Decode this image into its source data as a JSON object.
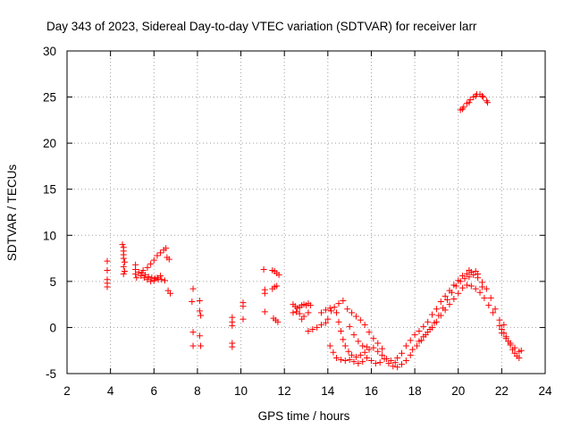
{
  "chart_data": {
    "type": "scatter",
    "title": "Day 343 of 2023, Sidereal Day-to-day VTEC variation (SDTVAR) for receiver larr",
    "xlabel": "GPS time / hours",
    "ylabel": "SDTVAR / TECUs",
    "xlim": [
      2,
      24
    ],
    "ylim": [
      -5,
      30
    ],
    "xticks": [
      2,
      4,
      6,
      8,
      10,
      12,
      14,
      16,
      18,
      20,
      22,
      24
    ],
    "yticks": [
      -5,
      0,
      5,
      10,
      15,
      20,
      25,
      30
    ],
    "grid": true,
    "marker": "plus",
    "color": "#ff0000",
    "points": [
      [
        3.85,
        7.2
      ],
      [
        3.85,
        6.2
      ],
      [
        3.85,
        5.2
      ],
      [
        3.85,
        4.8
      ],
      [
        3.85,
        4.4
      ],
      [
        4.55,
        9.0
      ],
      [
        4.6,
        8.7
      ],
      [
        4.6,
        8.3
      ],
      [
        4.6,
        7.9
      ],
      [
        4.6,
        7.5
      ],
      [
        4.65,
        7.1
      ],
      [
        4.6,
        6.6
      ],
      [
        4.65,
        6.1
      ],
      [
        4.6,
        5.8
      ],
      [
        5.15,
        6.8
      ],
      [
        5.15,
        6.3
      ],
      [
        5.15,
        5.8
      ],
      [
        5.2,
        5.4
      ],
      [
        5.3,
        6.0
      ],
      [
        5.45,
        5.9
      ],
      [
        5.6,
        5.7
      ],
      [
        5.75,
        5.5
      ],
      [
        5.9,
        5.4
      ],
      [
        6.05,
        5.3
      ],
      [
        6.2,
        5.2
      ],
      [
        6.35,
        5.2
      ],
      [
        6.5,
        5.1
      ],
      [
        5.4,
        5.6
      ],
      [
        5.55,
        5.4
      ],
      [
        5.7,
        5.2
      ],
      [
        5.85,
        5.0
      ],
      [
        6.0,
        5.1
      ],
      [
        6.15,
        5.4
      ],
      [
        6.3,
        5.6
      ],
      [
        5.5,
        6.2
      ],
      [
        5.7,
        6.5
      ],
      [
        5.85,
        6.9
      ],
      [
        6.0,
        7.3
      ],
      [
        6.15,
        7.8
      ],
      [
        6.3,
        8.1
      ],
      [
        6.45,
        8.4
      ],
      [
        6.55,
        8.6
      ],
      [
        6.6,
        7.6
      ],
      [
        6.7,
        7.4
      ],
      [
        6.65,
        4.0
      ],
      [
        6.75,
        3.7
      ],
      [
        7.8,
        4.2
      ],
      [
        7.75,
        2.8
      ],
      [
        7.8,
        -0.5
      ],
      [
        7.8,
        -2.0
      ],
      [
        8.1,
        2.9
      ],
      [
        8.1,
        1.8
      ],
      [
        8.15,
        1.3
      ],
      [
        8.1,
        -0.9
      ],
      [
        8.15,
        -2.0
      ],
      [
        9.6,
        1.1
      ],
      [
        9.6,
        0.6
      ],
      [
        9.6,
        0.2
      ],
      [
        9.6,
        -1.7
      ],
      [
        9.6,
        -2.1
      ],
      [
        10.1,
        2.7
      ],
      [
        10.1,
        2.3
      ],
      [
        10.1,
        0.9
      ],
      [
        11.05,
        6.3
      ],
      [
        11.1,
        4.1
      ],
      [
        11.1,
        3.7
      ],
      [
        11.1,
        1.7
      ],
      [
        11.45,
        6.2
      ],
      [
        11.55,
        6.1
      ],
      [
        11.65,
        5.9
      ],
      [
        11.75,
        5.7
      ],
      [
        11.45,
        4.2
      ],
      [
        11.55,
        4.4
      ],
      [
        11.65,
        4.5
      ],
      [
        11.5,
        1.0
      ],
      [
        11.6,
        0.8
      ],
      [
        11.7,
        0.6
      ],
      [
        12.4,
        2.5
      ],
      [
        12.5,
        2.3
      ],
      [
        12.6,
        2.1
      ],
      [
        12.7,
        2.2
      ],
      [
        12.8,
        2.4
      ],
      [
        12.9,
        2.5
      ],
      [
        13.0,
        2.4
      ],
      [
        13.1,
        2.6
      ],
      [
        13.2,
        2.4
      ],
      [
        12.4,
        1.6
      ],
      [
        12.55,
        1.7
      ],
      [
        12.7,
        1.5
      ],
      [
        12.9,
        1.2
      ],
      [
        13.1,
        1.6
      ],
      [
        12.8,
        0.9
      ],
      [
        13.1,
        -0.4
      ],
      [
        13.3,
        -0.2
      ],
      [
        13.5,
        0.0
      ],
      [
        13.7,
        0.3
      ],
      [
        13.9,
        0.5
      ],
      [
        14.0,
        0.9
      ],
      [
        14.15,
        1.8
      ],
      [
        13.7,
        1.6
      ],
      [
        13.9,
        1.9
      ],
      [
        14.1,
        2.1
      ],
      [
        14.3,
        2.2
      ],
      [
        14.5,
        2.6
      ],
      [
        14.7,
        2.9
      ],
      [
        14.9,
        2.0
      ],
      [
        15.1,
        1.6
      ],
      [
        15.3,
        1.2
      ],
      [
        15.5,
        0.8
      ],
      [
        15.7,
        0.3
      ],
      [
        15.9,
        -0.5
      ],
      [
        16.1,
        -1.2
      ],
      [
        16.3,
        -1.7
      ],
      [
        16.5,
        -2.3
      ],
      [
        14.4,
        1.6
      ],
      [
        14.5,
        0.6
      ],
      [
        14.6,
        -0.4
      ],
      [
        14.7,
        -1.3
      ],
      [
        14.8,
        -2.0
      ],
      [
        14.95,
        -2.6
      ],
      [
        15.1,
        -3.0
      ],
      [
        15.3,
        -3.2
      ],
      [
        15.5,
        -3.0
      ],
      [
        15.7,
        -2.7
      ],
      [
        15.9,
        -2.4
      ],
      [
        16.1,
        -2.2
      ],
      [
        16.3,
        -2.6
      ],
      [
        16.5,
        -3.0
      ],
      [
        16.7,
        -3.4
      ],
      [
        16.9,
        -3.6
      ],
      [
        17.1,
        -3.8
      ],
      [
        14.1,
        -2.0
      ],
      [
        14.25,
        -2.7
      ],
      [
        14.4,
        -3.3
      ],
      [
        14.6,
        -3.5
      ],
      [
        14.8,
        -3.6
      ],
      [
        15.0,
        -3.5
      ],
      [
        15.2,
        -3.7
      ],
      [
        15.4,
        -3.9
      ],
      [
        15.6,
        -3.7
      ],
      [
        15.8,
        -3.3
      ],
      [
        16.0,
        -3.6
      ],
      [
        16.2,
        -3.9
      ],
      [
        16.4,
        -3.8
      ],
      [
        16.6,
        -3.4
      ],
      [
        16.8,
        -3.9
      ],
      [
        17.0,
        -4.2
      ],
      [
        17.2,
        -4.3
      ],
      [
        17.4,
        -4.0
      ],
      [
        17.6,
        -3.6
      ],
      [
        17.8,
        -3.0
      ],
      [
        15.0,
        0.1
      ],
      [
        15.2,
        -0.8
      ],
      [
        15.4,
        -1.5
      ],
      [
        15.6,
        -2.0
      ],
      [
        15.8,
        -2.1
      ],
      [
        17.2,
        -3.3
      ],
      [
        17.4,
        -2.8
      ],
      [
        17.6,
        -2.0
      ],
      [
        17.8,
        -1.4
      ],
      [
        18.0,
        -0.8
      ],
      [
        18.2,
        -0.4
      ],
      [
        18.4,
        0.1
      ],
      [
        18.6,
        0.6
      ],
      [
        18.8,
        1.4
      ],
      [
        19.0,
        2.0
      ],
      [
        19.2,
        2.8
      ],
      [
        19.4,
        3.4
      ],
      [
        19.6,
        4.0
      ],
      [
        19.8,
        4.6
      ],
      [
        20.0,
        5.1
      ],
      [
        20.2,
        5.6
      ],
      [
        20.4,
        5.8
      ],
      [
        20.6,
        6.0
      ],
      [
        20.8,
        6.1
      ],
      [
        18.2,
        -1.5
      ],
      [
        18.4,
        -1.0
      ],
      [
        18.6,
        -0.5
      ],
      [
        18.8,
        0.0
      ],
      [
        19.0,
        0.6
      ],
      [
        19.2,
        1.3
      ],
      [
        19.4,
        1.9
      ],
      [
        19.6,
        2.5
      ],
      [
        19.8,
        3.1
      ],
      [
        20.0,
        3.7
      ],
      [
        20.2,
        4.3
      ],
      [
        20.4,
        4.6
      ],
      [
        20.6,
        4.5
      ],
      [
        20.8,
        4.2
      ],
      [
        21.0,
        3.8
      ],
      [
        21.2,
        3.2
      ],
      [
        21.4,
        2.4
      ],
      [
        21.6,
        1.6
      ],
      [
        17.9,
        -2.4
      ],
      [
        18.1,
        -2.0
      ],
      [
        18.3,
        -1.4
      ],
      [
        18.5,
        -0.8
      ],
      [
        18.7,
        -0.2
      ],
      [
        18.9,
        0.5
      ],
      [
        19.1,
        1.3
      ],
      [
        19.3,
        2.1
      ],
      [
        19.5,
        3.0
      ],
      [
        19.7,
        3.8
      ],
      [
        19.9,
        4.5
      ],
      [
        20.1,
        5.0
      ],
      [
        20.3,
        5.3
      ],
      [
        20.5,
        5.5
      ],
      [
        20.7,
        5.7
      ],
      [
        20.9,
        5.4
      ],
      [
        21.1,
        4.9
      ],
      [
        21.3,
        4.2
      ],
      [
        21.5,
        3.2
      ],
      [
        21.7,
        2.0
      ],
      [
        21.9,
        0.8
      ],
      [
        22.1,
        0.3
      ],
      [
        20.5,
        6.2
      ],
      [
        20.6,
        6.0
      ],
      [
        20.9,
        5.8
      ],
      [
        21.1,
        4.4
      ],
      [
        21.9,
        0.2
      ],
      [
        22.0,
        -0.2
      ],
      [
        22.1,
        -0.6
      ],
      [
        22.2,
        -1.0
      ],
      [
        22.3,
        -1.5
      ],
      [
        22.4,
        -1.9
      ],
      [
        22.5,
        -2.4
      ],
      [
        22.6,
        -2.8
      ],
      [
        22.7,
        -3.1
      ],
      [
        22.8,
        -3.3
      ],
      [
        22.0,
        -0.6
      ],
      [
        22.2,
        -1.2
      ],
      [
        22.4,
        -1.7
      ],
      [
        22.6,
        -2.2
      ],
      [
        22.8,
        -2.6
      ],
      [
        22.9,
        -2.5
      ],
      [
        20.1,
        23.6
      ],
      [
        20.25,
        23.9
      ],
      [
        20.4,
        24.3
      ],
      [
        20.55,
        24.7
      ],
      [
        20.7,
        25.0
      ],
      [
        20.85,
        25.3
      ],
      [
        21.0,
        25.3
      ],
      [
        21.15,
        25.0
      ],
      [
        21.3,
        24.6
      ],
      [
        21.35,
        24.4
      ],
      [
        20.2,
        23.7
      ],
      [
        20.5,
        24.4
      ],
      [
        20.8,
        25.1
      ],
      [
        21.1,
        25.1
      ]
    ]
  }
}
